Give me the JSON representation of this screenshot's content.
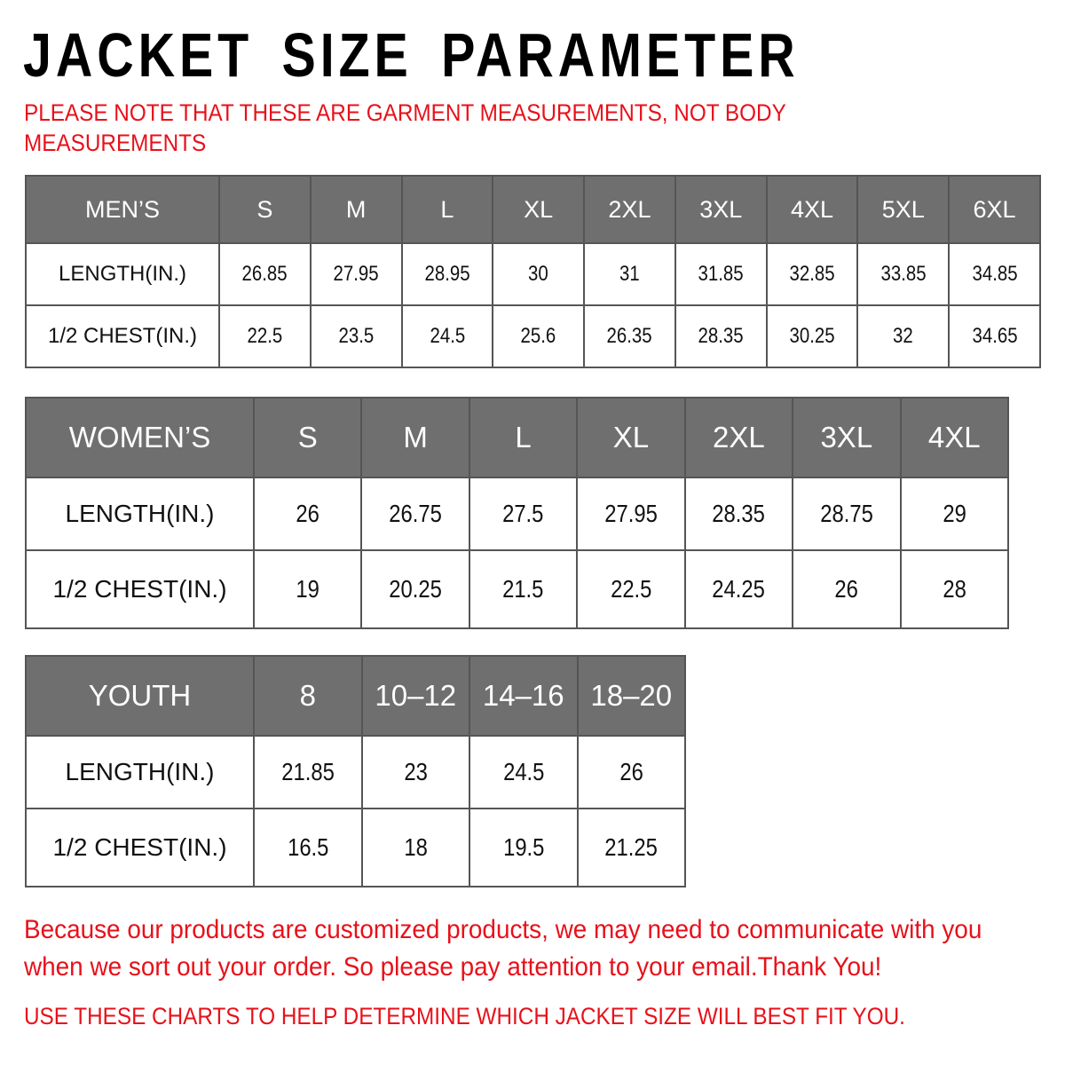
{
  "title": "JACKET SIZE PARAMETER",
  "note": "PLEASE NOTE THAT THESE ARE GARMENT MEASUREMENTS, NOT BODY MEASUREMENTS",
  "tables": [
    {
      "key": "men",
      "header": [
        "MEN’S",
        "S",
        "M",
        "L",
        "XL",
        "2XL",
        "3XL",
        "4XL",
        "5XL",
        "6XL"
      ],
      "rows": [
        [
          "LENGTH(IN.)",
          "26.85",
          "27.95",
          "28.95",
          "30",
          "31",
          "31.85",
          "32.85",
          "33.85",
          "34.85"
        ],
        [
          "1/2 CHEST(IN.)",
          "22.5",
          "23.5",
          "24.5",
          "25.6",
          "26.35",
          "28.35",
          "30.25",
          "32",
          "34.65"
        ]
      ]
    },
    {
      "key": "women",
      "header": [
        "WOMEN’S",
        "S",
        "M",
        "L",
        "XL",
        "2XL",
        "3XL",
        "4XL"
      ],
      "rows": [
        [
          "LENGTH(IN.)",
          "26",
          "26.75",
          "27.5",
          "27.95",
          "28.35",
          "28.75",
          "29"
        ],
        [
          "1/2 CHEST(IN.)",
          "19",
          "20.25",
          "21.5",
          "22.5",
          "24.25",
          "26",
          "28"
        ]
      ]
    },
    {
      "key": "youth",
      "header": [
        "YOUTH",
        "8",
        "10–12",
        "14–16",
        "18–20"
      ],
      "rows": [
        [
          "LENGTH(IN.)",
          "21.85",
          "23",
          "24.5",
          "26"
        ],
        [
          "1/2 CHEST(IN.)",
          "16.5",
          "18",
          "19.5",
          "21.25"
        ]
      ]
    }
  ],
  "footer": {
    "message": "Because our products are customized products, we may need to communicate with you when we sort out your order. So please pay attention to your email.Thank You!",
    "advice": "USE THESE CHARTS TO HELP DETERMINE WHICH JACKET SIZE WILL BEST FIT YOU."
  },
  "colors": {
    "accent_red": "#e8101a",
    "header_gray": "#6f6f6f"
  }
}
